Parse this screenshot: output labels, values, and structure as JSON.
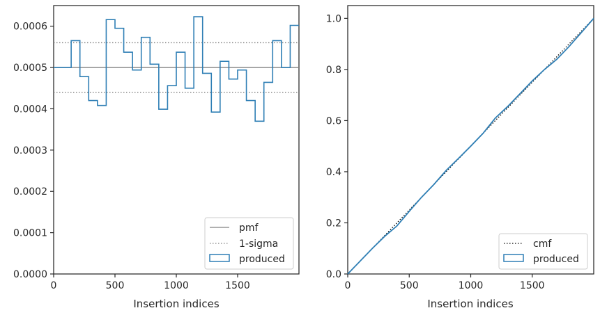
{
  "chart_data": [
    {
      "type": "line",
      "xlabel": "Insertion indices",
      "ylabel": "",
      "xlim": [
        0,
        2000
      ],
      "ylim": [
        0,
        0.00065
      ],
      "xticks": [
        0,
        500,
        1000,
        1500
      ],
      "xtick_labels": [
        "0",
        "500",
        "1000",
        "1500"
      ],
      "yticks": [
        0,
        0.0001,
        0.0002,
        0.0003,
        0.0004,
        0.0005,
        0.0006
      ],
      "ytick_labels": [
        "0.0000",
        "0.0001",
        "0.0002",
        "0.0003",
        "0.0004",
        "0.0005",
        "0.0006"
      ],
      "legend_position": "lower-right",
      "grid": false,
      "series": [
        {
          "name": "pmf",
          "kind": "hline",
          "y": 0.0005,
          "color": "#808080",
          "style": "solid"
        },
        {
          "name": "1-sigma",
          "kind": "hlines",
          "y": [
            0.00044,
            0.00056
          ],
          "color": "#808080",
          "style": "dotted"
        },
        {
          "name": "produced",
          "kind": "step-histogram",
          "color": "#2f7fb5",
          "bin_edges": [
            0,
            142.857,
            214.286,
            285.714,
            357.143,
            428.571,
            500,
            571.429,
            642.857,
            714.286,
            785.714,
            857.143,
            928.571,
            1000,
            1071.43,
            1142.86,
            1214.29,
            1285.71,
            1357.14,
            1428.57,
            1500,
            1571.43,
            1642.86,
            1714.29,
            1785.71,
            1857.14,
            1928.57,
            2000
          ],
          "values": [
            0.0005,
            0.000565,
            0.000478,
            0.00042,
            0.000408,
            0.000616,
            0.000595,
            0.000537,
            0.000494,
            0.000573,
            0.000508,
            0.000399,
            0.000456,
            0.000537,
            0.00045,
            0.000623,
            0.000486,
            0.000392,
            0.000515,
            0.000472,
            0.000494,
            0.00042,
            0.00037,
            0.000464,
            0.000565,
            0.0005,
            0.000602
          ]
        }
      ]
    },
    {
      "type": "line",
      "xlabel": "Insertion indices",
      "ylabel": "",
      "xlim": [
        0,
        2000
      ],
      "ylim": [
        0,
        1.05
      ],
      "xticks": [
        0,
        500,
        1000,
        1500
      ],
      "xtick_labels": [
        "0",
        "500",
        "1000",
        "1500"
      ],
      "yticks": [
        0,
        0.2,
        0.4,
        0.6,
        0.8,
        1.0
      ],
      "ytick_labels": [
        "0.0",
        "0.2",
        "0.4",
        "0.6",
        "0.8",
        "1.0"
      ],
      "legend_position": "lower-right",
      "grid": false,
      "series": [
        {
          "name": "cmf",
          "kind": "line",
          "x": [
            0,
            2000
          ],
          "y": [
            0,
            1
          ],
          "color": "#000000",
          "style": "dotted"
        },
        {
          "name": "produced",
          "kind": "line",
          "color": "#2f7fb5",
          "x": [
            0,
            100,
            200,
            300,
            400,
            500,
            600,
            700,
            800,
            900,
            1000,
            1100,
            1200,
            1300,
            1400,
            1500,
            1600,
            1700,
            1800,
            1900,
            2000
          ],
          "y": [
            0,
            0.05,
            0.1,
            0.147,
            0.188,
            0.245,
            0.3,
            0.35,
            0.405,
            0.452,
            0.5,
            0.55,
            0.61,
            0.655,
            0.705,
            0.755,
            0.8,
            0.84,
            0.89,
            0.945,
            1.0
          ]
        }
      ]
    }
  ]
}
